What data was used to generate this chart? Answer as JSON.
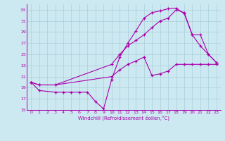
{
  "xlabel": "Windchill (Refroidissement éolien,°C)",
  "xlim": [
    -0.5,
    23.5
  ],
  "ylim": [
    15,
    34
  ],
  "yticks": [
    15,
    17,
    19,
    21,
    23,
    25,
    27,
    29,
    31,
    33
  ],
  "xticks": [
    0,
    1,
    2,
    3,
    4,
    5,
    6,
    7,
    8,
    9,
    10,
    11,
    12,
    13,
    14,
    15,
    16,
    17,
    18,
    19,
    20,
    21,
    22,
    23
  ],
  "bg_color": "#cce8f0",
  "grid_color": "#aacfdb",
  "line_color": "#aa00aa",
  "line1_x": [
    0,
    1,
    3,
    4,
    5,
    6,
    7,
    8,
    9,
    10,
    11,
    12,
    13,
    14,
    15,
    16,
    17,
    18,
    19,
    20,
    21,
    22,
    23
  ],
  "line1_y": [
    20.0,
    18.5,
    18.2,
    18.2,
    18.2,
    18.2,
    18.2,
    16.5,
    15.2,
    20.5,
    24.5,
    27.0,
    29.2,
    31.5,
    32.5,
    32.8,
    33.2,
    33.3,
    32.3,
    28.5,
    26.5,
    25.0,
    23.5
  ],
  "line2_x": [
    0,
    1,
    3,
    10,
    11,
    12,
    13,
    14,
    15,
    16,
    17,
    18,
    19,
    20,
    21,
    22,
    23
  ],
  "line2_y": [
    20.0,
    19.5,
    19.5,
    23.2,
    25.0,
    26.5,
    27.5,
    28.5,
    29.8,
    31.0,
    31.5,
    33.0,
    32.5,
    28.5,
    28.5,
    25.0,
    23.5
  ],
  "line3_x": [
    0,
    1,
    3,
    10,
    11,
    12,
    13,
    14,
    15,
    16,
    17,
    18,
    19,
    20,
    21,
    22,
    23
  ],
  "line3_y": [
    20.0,
    19.5,
    19.5,
    21.0,
    22.2,
    23.2,
    23.8,
    24.5,
    21.2,
    21.5,
    22.0,
    23.2,
    23.2,
    23.2,
    23.2,
    23.2,
    23.2
  ]
}
